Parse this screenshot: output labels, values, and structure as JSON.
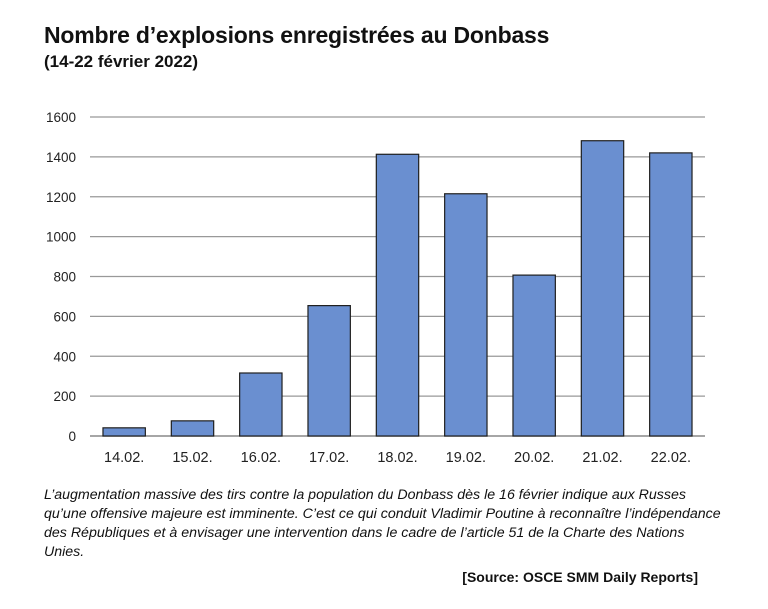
{
  "chart_data": {
    "type": "bar",
    "title": "Nombre d’explosions enregistrées au Donbass",
    "subtitle": "(14-22 février 2022)",
    "categories": [
      "14.02.",
      "15.02.",
      "16.02.",
      "17.02.",
      "18.02.",
      "19.02.",
      "20.02.",
      "21.02.",
      "22.02."
    ],
    "values": [
      41,
      76,
      316,
      654,
      1413,
      1215,
      807,
      1481,
      1420
    ],
    "xlabel": "",
    "ylabel": "",
    "ylim": [
      0,
      1600
    ],
    "yticks": [
      0,
      200,
      400,
      600,
      800,
      1000,
      1200,
      1400,
      1600
    ],
    "grid": true,
    "bar_color": "#6a8fd0",
    "bar_stroke": "#1f1f1f",
    "grid_color": "#999999"
  },
  "caption": "L’augmentation massive des tirs contre la population du Donbass dès le 16 février indique aux Russes qu’une offensive majeure est imminente. C’est ce qui conduit Vladimir Poutine à reconnaître l’indépendance des Républiques et à envisager une intervention dans le cadre de l’article 51 de la Charte des Nations Unies.",
  "source": "[Source: OSCE SMM Daily Reports]"
}
